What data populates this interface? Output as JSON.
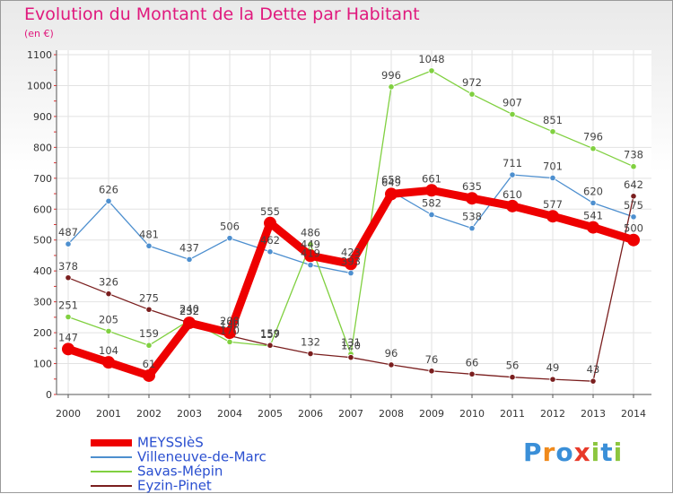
{
  "title": "Evolution du Montant de la Dette par Habitant",
  "unit": "(en €)",
  "logo": {
    "text": "Proxiti",
    "letter_colors": [
      "#3a8fd8",
      "#f08a1c",
      "#3a8fd8",
      "#e83a2a",
      "#8cc63f",
      "#3a8fd8",
      "#8cc63f"
    ]
  },
  "chart_data": {
    "type": "line",
    "title": "Evolution du Montant de la Dette par Habitant",
    "ylabel": "(en €)",
    "xlabel": "",
    "ylim": [
      0,
      1100
    ],
    "yticks": [
      0,
      100,
      200,
      300,
      400,
      500,
      600,
      700,
      800,
      900,
      1000,
      1100
    ],
    "grid": true,
    "legend_position": "bottom-left",
    "x": [
      2000,
      2001,
      2002,
      2003,
      2004,
      2005,
      2006,
      2007,
      2008,
      2009,
      2010,
      2011,
      2012,
      2013,
      2014
    ],
    "series": [
      {
        "name": "MEYSSIèS",
        "color": "#ee0000",
        "values": [
          147,
          104,
          61,
          232,
          200,
          555,
          449,
          423,
          649,
          661,
          635,
          610,
          577,
          541,
          500
        ]
      },
      {
        "name": "Villeneuve-de-Marc",
        "color": "#4d8fcf",
        "values": [
          487,
          626,
          481,
          437,
          506,
          462,
          419,
          393,
          658,
          582,
          538,
          711,
          701,
          620,
          575
        ]
      },
      {
        "name": "Savas-Mépin",
        "color": "#80d040",
        "values": [
          251,
          205,
          159,
          240,
          170,
          157,
          486,
          131,
          996,
          1048,
          972,
          907,
          851,
          796,
          738
        ]
      },
      {
        "name": "Eyzin-Pinet",
        "color": "#7a1e1e",
        "values": [
          378,
          326,
          275,
          232,
          190,
          159,
          132,
          120,
          96,
          76,
          66,
          56,
          49,
          43,
          642
        ]
      }
    ]
  }
}
